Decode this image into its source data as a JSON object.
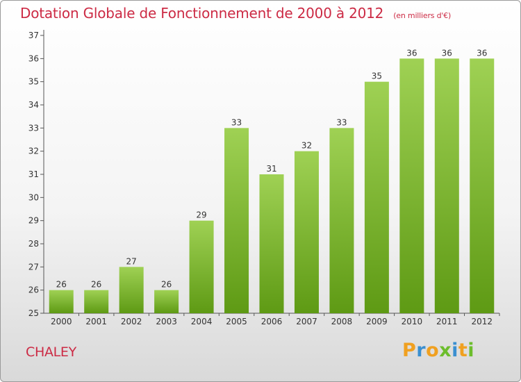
{
  "header": {
    "title": "Dotation Globale de Fonctionnement de 2000 à 2012",
    "subtitle": "(en milliers d'€)"
  },
  "footer": {
    "commune": "CHALEY",
    "logo": "Proxiti"
  },
  "colors": {
    "title": "#cc2a44",
    "bar_top": "#9fd154",
    "bar_bottom": "#5e9a14",
    "axis": "#555555",
    "logo_letters": [
      "#f0a020",
      "#3a8fd0",
      "#f0a020",
      "#6cbd2c",
      "#3a8fd0",
      "#f0a020",
      "#6cbd2c"
    ]
  },
  "chart_data": {
    "type": "bar",
    "categories": [
      "2000",
      "2001",
      "2002",
      "2003",
      "2004",
      "2005",
      "2006",
      "2007",
      "2008",
      "2009",
      "2010",
      "2011",
      "2012"
    ],
    "values": [
      26,
      26,
      27,
      26,
      29,
      33,
      31,
      32,
      33,
      35,
      36,
      36,
      36
    ],
    "title": "Dotation Globale de Fonctionnement de 2000 à 2012",
    "subtitle": "(en milliers d'€)",
    "xlabel": "",
    "ylabel": "",
    "ylim": [
      25,
      37
    ],
    "yticks": [
      25,
      26,
      27,
      28,
      29,
      30,
      31,
      32,
      33,
      34,
      35,
      36,
      37
    ],
    "grid": false,
    "data_labels": true
  }
}
